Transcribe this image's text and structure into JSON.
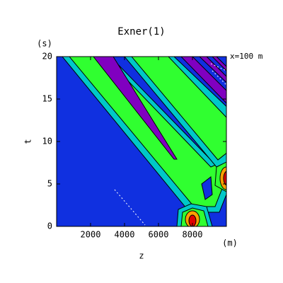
{
  "chart_data": {
    "type": "contour",
    "title": "Exner(1)",
    "x_label": "z",
    "x_unit": "(m)",
    "y_label": "t",
    "y_unit": "(s)",
    "annotation": "x=100 m",
    "xlim": [
      0,
      10000
    ],
    "xticks": [
      2000,
      4000,
      6000,
      8000
    ],
    "ylim": [
      0,
      20
    ],
    "yticks": [
      0,
      5,
      10,
      15,
      20
    ]
  }
}
